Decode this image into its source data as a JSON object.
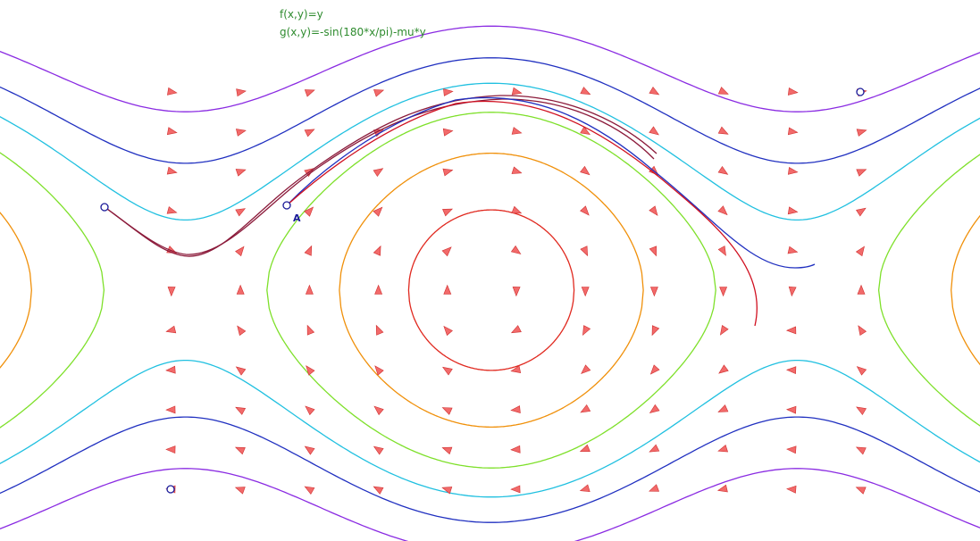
{
  "equations": {
    "f": "f(x,y)=y",
    "g": "g(x,y)=-sin(180*x/pi)-mu*y"
  },
  "point_a": {
    "label": "A"
  }
}
